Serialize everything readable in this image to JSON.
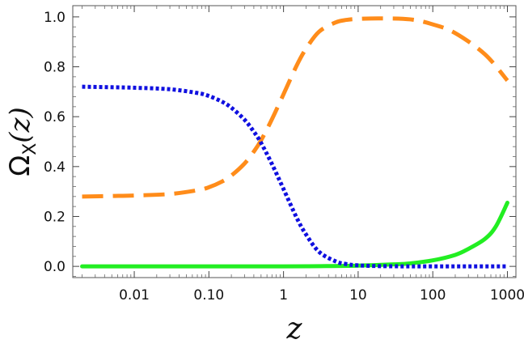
{
  "chart_data": {
    "type": "line",
    "xscale": "log",
    "xlim": [
      0.0015,
      1300
    ],
    "ylim": [
      -0.045,
      1.045
    ],
    "xlabel": "z",
    "ylabel": "Ω_X(z)",
    "ylabel_main": "Ω",
    "ylabel_sub": "X",
    "ylabel_arg": "(z)",
    "grid": false,
    "x_ticks": [
      {
        "value": 0.01,
        "label": "0.01"
      },
      {
        "value": 0.1,
        "label": "0.10"
      },
      {
        "value": 1,
        "label": "1"
      },
      {
        "value": 10,
        "label": "10"
      },
      {
        "value": 100,
        "label": "100"
      },
      {
        "value": 1000,
        "label": "1000"
      }
    ],
    "y_ticks": [
      {
        "value": 0.0,
        "label": "0.0"
      },
      {
        "value": 0.2,
        "label": "0.2"
      },
      {
        "value": 0.4,
        "label": "0.4"
      },
      {
        "value": 0.6,
        "label": "0.6"
      },
      {
        "value": 0.8,
        "label": "0.8"
      },
      {
        "value": 1.0,
        "label": "1.0"
      }
    ],
    "series": [
      {
        "style": "dotted",
        "color": "#1010e0",
        "x": [
          0.002,
          0.005,
          0.01,
          0.03,
          0.07,
          0.1,
          0.15,
          0.2,
          0.3,
          0.4,
          0.5,
          0.7,
          1,
          1.5,
          2,
          3,
          5,
          7,
          10,
          20,
          50,
          100,
          300,
          1000
        ],
        "y": [
          0.72,
          0.718,
          0.716,
          0.71,
          0.695,
          0.683,
          0.66,
          0.636,
          0.588,
          0.54,
          0.495,
          0.41,
          0.31,
          0.195,
          0.128,
          0.058,
          0.02,
          0.009,
          0.004,
          0.001,
          0.0,
          0.0,
          0.0,
          0.0
        ]
      },
      {
        "style": "dashed",
        "color": "#ff8c1a",
        "x": [
          0.002,
          0.005,
          0.01,
          0.03,
          0.07,
          0.1,
          0.15,
          0.2,
          0.3,
          0.4,
          0.5,
          0.7,
          1,
          1.5,
          2,
          3,
          5,
          7,
          10,
          20,
          50,
          100,
          200,
          500,
          1000
        ],
        "y": [
          0.28,
          0.282,
          0.284,
          0.29,
          0.305,
          0.317,
          0.34,
          0.364,
          0.412,
          0.46,
          0.505,
          0.59,
          0.69,
          0.805,
          0.872,
          0.941,
          0.978,
          0.988,
          0.992,
          0.994,
          0.99,
          0.97,
          0.935,
          0.85,
          0.745
        ]
      },
      {
        "style": "solid",
        "color": "#22ee22",
        "x": [
          0.002,
          0.01,
          0.1,
          1,
          3,
          10,
          30,
          50,
          100,
          200,
          300,
          500,
          700,
          1000
        ],
        "y": [
          0.0,
          0.0,
          0.0,
          0.0,
          0.001,
          0.003,
          0.008,
          0.012,
          0.024,
          0.046,
          0.07,
          0.11,
          0.16,
          0.255
        ]
      }
    ]
  }
}
